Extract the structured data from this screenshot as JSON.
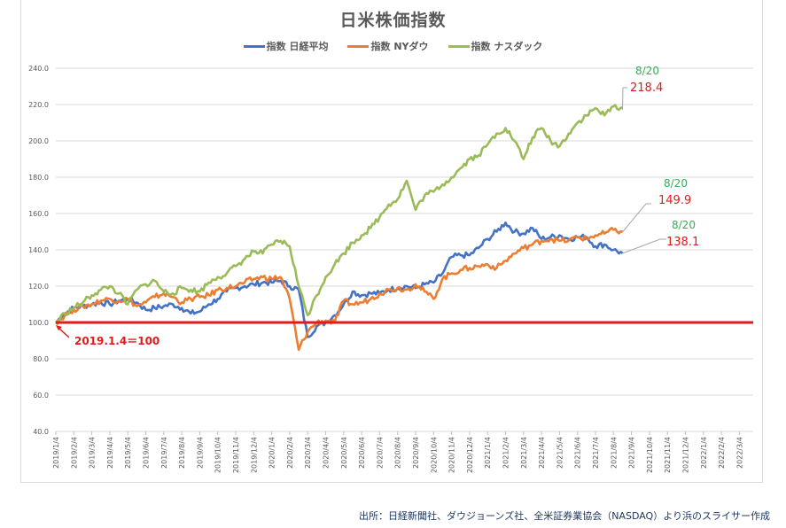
{
  "chart_data": {
    "type": "line",
    "title": "日米株価指数",
    "xlabel": "",
    "ylabel": "",
    "ylim": [
      40,
      240
    ],
    "yticks": [
      "40.0",
      "60.0",
      "80.0",
      "100.0",
      "120.0",
      "140.0",
      "160.0",
      "180.0",
      "200.0",
      "220.0",
      "240.0"
    ],
    "grid": true,
    "legend_position": "top",
    "categories": [
      "2019/1/4",
      "2019/2/4",
      "2019/3/4",
      "2019/4/4",
      "2019/5/4",
      "2019/6/4",
      "2019/7/4",
      "2019/8/4",
      "2019/9/4",
      "2019/10/4",
      "2019/11/4",
      "2019/12/4",
      "2020/1/4",
      "2020/2/4",
      "2020/3/4",
      "2020/4/4",
      "2020/5/4",
      "2020/6/4",
      "2020/7/4",
      "2020/8/4",
      "2020/9/4",
      "2020/10/4",
      "2020/11/4",
      "2020/12/4",
      "2021/1/4",
      "2021/2/4",
      "2021/3/4",
      "2021/4/4",
      "2021/5/4",
      "2021/6/4",
      "2021/7/4",
      "2021/8/4",
      "2021/9/4",
      "2021/10/4",
      "2021/11/4",
      "2021/12/4",
      "2022/1/4",
      "2022/2/4",
      "2022/3/4"
    ],
    "x_months": [
      0,
      0.5,
      1,
      1.5,
      2,
      2.5,
      3,
      3.5,
      4,
      4.5,
      5,
      5.5,
      6,
      6.5,
      7,
      7.5,
      8,
      8.5,
      9,
      9.5,
      10,
      10.5,
      11,
      11.5,
      12,
      12.5,
      13,
      13.5,
      14,
      14.5,
      15,
      15.5,
      16,
      16.5,
      17,
      17.5,
      18,
      18.5,
      19,
      19.5,
      20,
      20.5,
      21,
      21.5,
      22,
      22.5,
      23,
      23.5,
      24,
      24.5,
      25,
      25.5,
      26,
      26.5,
      27,
      27.5,
      28,
      28.5,
      29,
      29.5,
      30,
      30.5,
      31,
      31.5
    ],
    "series": [
      {
        "name": "指数 日経平均",
        "color": "#4472c4",
        "values": [
          100,
          105,
          108,
          109,
          110,
          111,
          110,
          112,
          113,
          111,
          107,
          108,
          109,
          110,
          108,
          105,
          106,
          110,
          113,
          117,
          119,
          120,
          121,
          122,
          122,
          123,
          120,
          118,
          92,
          98,
          100,
          104,
          110,
          117,
          115,
          116,
          116,
          118,
          119,
          120,
          119,
          121,
          122,
          127,
          136,
          137,
          137,
          141,
          146,
          150,
          155,
          150,
          149,
          152,
          146,
          147,
          148,
          146,
          147,
          147,
          142,
          143,
          140,
          138.1
        ]
      },
      {
        "name": "指数 NYダウ",
        "color": "#ed7d31",
        "values": [
          100,
          104,
          107,
          109,
          110,
          112,
          113,
          112,
          113,
          109,
          111,
          114,
          116,
          114,
          111,
          113,
          114,
          115,
          118,
          119,
          120,
          122,
          124,
          125,
          124,
          125,
          113,
          85,
          95,
          100,
          101,
          100,
          112,
          110,
          111,
          113,
          116,
          118,
          119,
          118,
          121,
          117,
          113,
          124,
          127,
          129,
          130,
          131,
          132,
          130,
          134,
          138,
          141,
          143,
          145,
          146,
          145,
          145,
          147,
          146,
          148,
          149,
          151,
          149.9
        ]
      },
      {
        "name": "指数 ナスダック",
        "color": "#9bbb59",
        "values": [
          100,
          105,
          108,
          111,
          115,
          118,
          120,
          116,
          110,
          118,
          121,
          123,
          117,
          116,
          119,
          118,
          117,
          122,
          125,
          127,
          131,
          135,
          139,
          138,
          143,
          145,
          142,
          120,
          104,
          115,
          125,
          132,
          138,
          144,
          148,
          152,
          158,
          165,
          168,
          178,
          162,
          170,
          172,
          176,
          180,
          185,
          190,
          192,
          198,
          204,
          207,
          200,
          190,
          202,
          207,
          200,
          197,
          204,
          210,
          214,
          218,
          214,
          219,
          218.4
        ]
      }
    ],
    "annotations": [
      {
        "label_date": "8/20",
        "label_value": "218.4",
        "series": "指数 ナスダック"
      },
      {
        "label_date": "8/20",
        "label_value": "149.9",
        "series": "指数 NYダウ"
      },
      {
        "label_date": "8/20",
        "label_value": "138.1",
        "series": "指数 日経平均"
      },
      {
        "text": "2019.1.4＝100",
        "note": "baseline at 100"
      }
    ],
    "baseline": {
      "value": 100,
      "color": "#e31a1c"
    }
  },
  "header": {
    "title": "日米株価指数"
  },
  "legend": {
    "items": [
      {
        "label": "指数 日経平均",
        "color": "#4472c4"
      },
      {
        "label": "指数 NYダウ",
        "color": "#ed7d31"
      },
      {
        "label": "指数 ナスダック",
        "color": "#9bbb59"
      }
    ]
  },
  "labels": {
    "nasdaq_date": "8/20",
    "nasdaq_value": "218.4",
    "dow_date": "8/20",
    "dow_value": "149.9",
    "nikkei_date": "8/20",
    "nikkei_value": "138.1",
    "baseline_note": "2019.1.4＝100"
  },
  "footer": {
    "source": "出所：日経新聞社、ダウジョーンズ社、全米証券業協会（NASDAQ）より浜のスライサー作成"
  }
}
